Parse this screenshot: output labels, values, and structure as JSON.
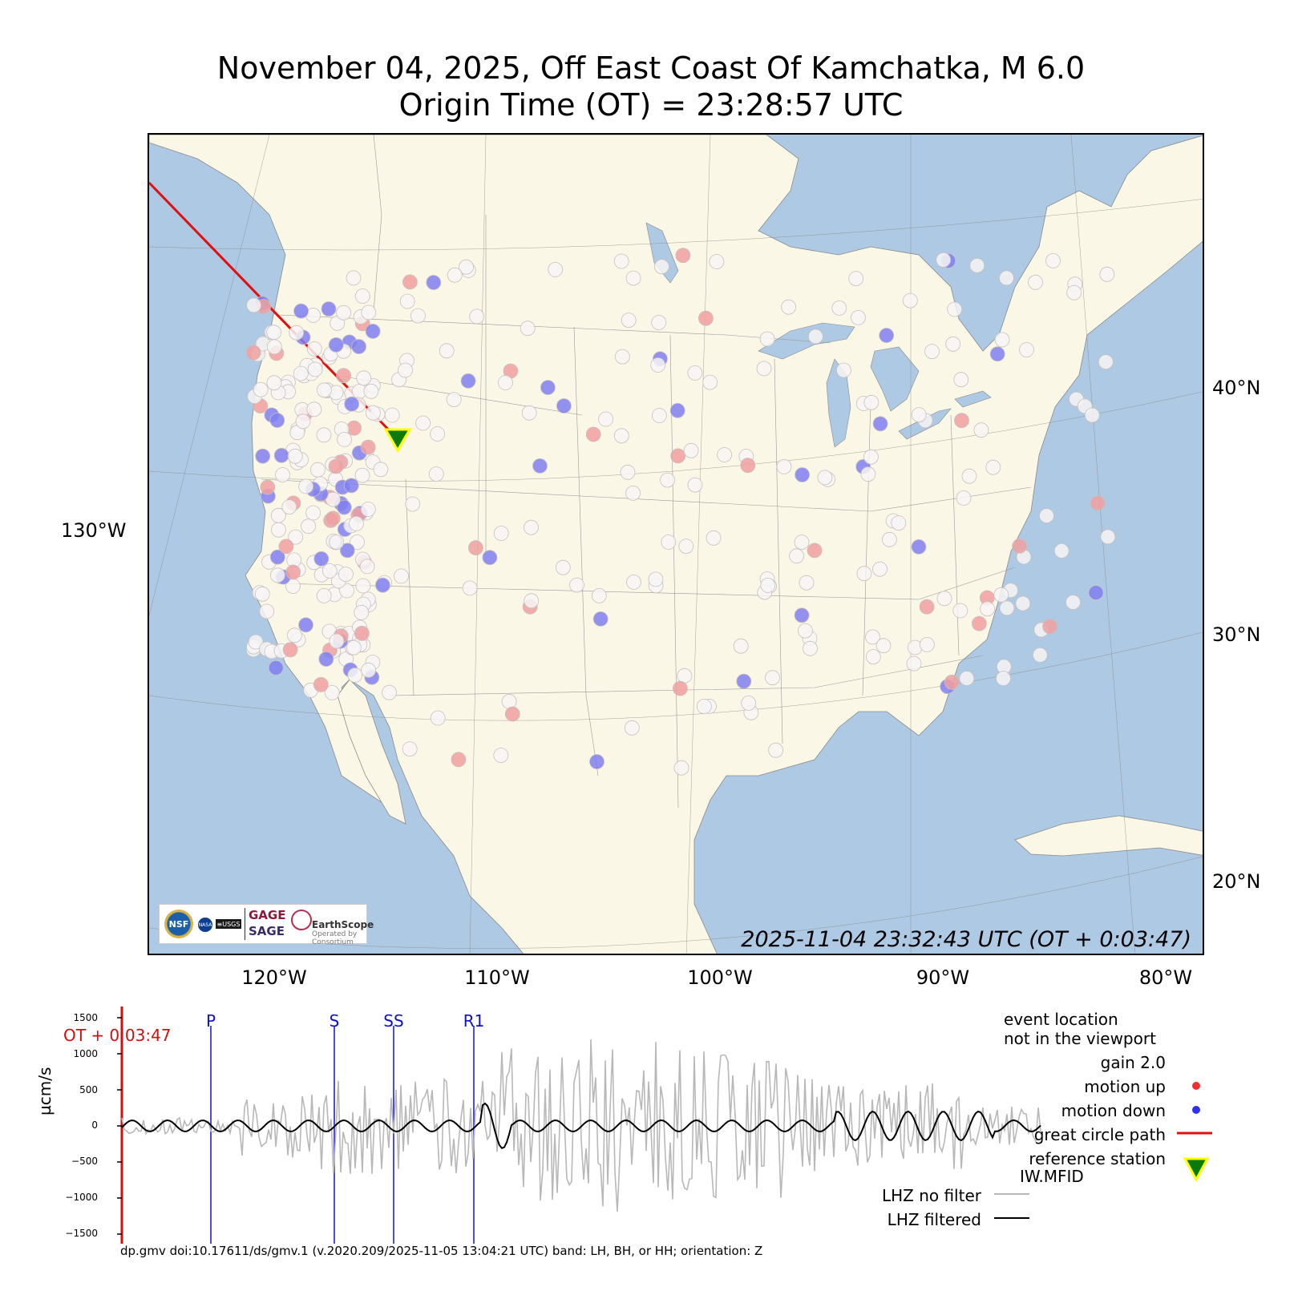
{
  "title": {
    "line1": "November 04, 2025, Off East Coast Of Kamchatka, M 6.0",
    "line2": "Origin Time (OT) = 23:28:57 UTC"
  },
  "map": {
    "timestamp": "2025-11-04 23:32:43 UTC (OT + 0:03:47)",
    "lon_labels": [
      "120°W",
      "110°W",
      "100°W",
      "90°W",
      "80°W"
    ],
    "lat_labels": [
      "40°N",
      "30°N",
      "20°N"
    ],
    "left_label": "130°W",
    "colors": {
      "ocean": "#adc9e3",
      "land": "#fbf7e6",
      "path": "#e01010",
      "station_neutral": "#f7f4f4",
      "motion_up": "#f0a0a0",
      "motion_down": "#7f7ff0",
      "ref_station": "#0a7a0a",
      "ref_outline": "#ffff00"
    },
    "logos": {
      "nsf": "NSF",
      "nasa": "NASA",
      "usgs": "≡USGS",
      "gage": "GAGE",
      "sage": "SAGE",
      "earthscope": "EarthScope",
      "consortium": "Operated by Consortium"
    }
  },
  "seismogram": {
    "ylabel": "µcm/s",
    "yticks": [
      "1500",
      "1000",
      "500",
      "0",
      "−500",
      "−1000",
      "−1500"
    ],
    "ot_label": "OT + 0:03:47",
    "phases": [
      "P",
      "S",
      "SS",
      "R1"
    ]
  },
  "legend": {
    "event_line1": "event location",
    "event_line2": "not in the viewport",
    "gain": "gain  2.0",
    "motion_up": "motion up",
    "motion_down": "motion down",
    "great_circle": "great circle path",
    "ref_line1": "reference station",
    "ref_line2": "IW.MFID",
    "no_filter": "LHZ no filter",
    "filtered": "LHZ filtered"
  },
  "footer": "dp.gmv doi:10.17611/ds/gmv.1 (v.2020.209/2025-11-05 13:04:21 UTC) band: LH, BH, or HH; orientation: Z"
}
